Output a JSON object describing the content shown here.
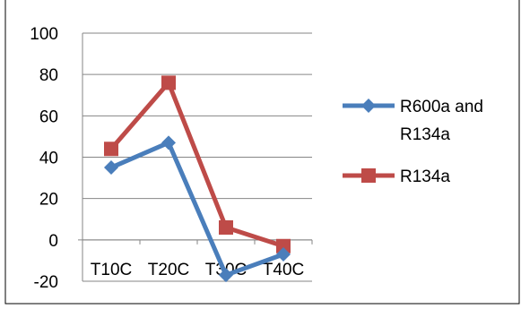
{
  "chart_data": {
    "type": "line",
    "categories": [
      "T10C",
      "T20C",
      "T30C",
      "T40C"
    ],
    "series": [
      {
        "name_lines": [
          "R600a and",
          "R134a"
        ],
        "color": "#4a7ebb",
        "marker": "diamond",
        "values": [
          35,
          47,
          -17,
          -7
        ]
      },
      {
        "name_lines": [
          "R134a"
        ],
        "color": "#be4b48",
        "marker": "square",
        "values": [
          44,
          76,
          6,
          -3
        ]
      }
    ],
    "ylim": [
      -20,
      100
    ],
    "yticks": [
      "100",
      "80",
      "60",
      "40",
      "20",
      "0",
      "-20"
    ],
    "grid": true,
    "legend": "right"
  }
}
